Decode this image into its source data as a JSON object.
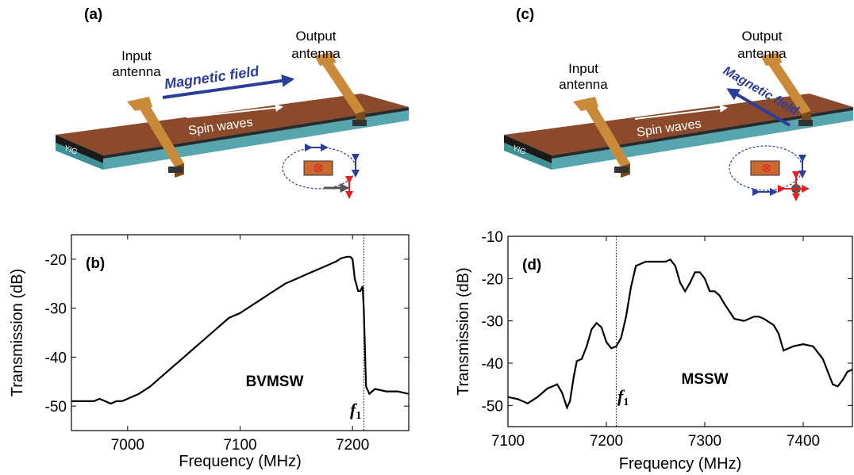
{
  "colors": {
    "slab_top": "#8a4a2a",
    "slab_side": "#3e8f96",
    "antenna": "#c98a3a",
    "field_arrow": "#2c3e9a",
    "curve": "#000000"
  },
  "panel_a": {
    "letter": "(a)",
    "input_antenna": [
      "Input",
      "antenna"
    ],
    "output_antenna": [
      "Output",
      "antenna"
    ],
    "field_label": "Magnetic field",
    "wave_label": "Spin waves",
    "yig": "YIG",
    "ggg": "GGG"
  },
  "panel_c": {
    "letter": "(c)",
    "input_antenna": [
      "Input",
      "antenna"
    ],
    "output_antenna": [
      "Output",
      "antenna"
    ],
    "field_label": "Magnetic field",
    "wave_label": "Spin waves",
    "yig": "YIG",
    "ggg": "GGG"
  },
  "chart_data": [
    {
      "type": "line",
      "panel": "(b)",
      "annotation": "BVMSW",
      "marker_label": "f",
      "marker_sub": "1",
      "marker_x": 7210,
      "xlabel": "Frequency (MHz)",
      "ylabel": "Transmission (dB)",
      "xlim": [
        6950,
        7250
      ],
      "ylim": [
        -55,
        -15
      ],
      "xticks": [
        7000,
        7100,
        7200
      ],
      "yticks": [
        -50,
        -40,
        -30,
        -20
      ],
      "series": [
        {
          "x": [
            6950,
            6970,
            6975,
            6985,
            6990,
            6995,
            7000,
            7010,
            7020,
            7030,
            7040,
            7050,
            7060,
            7070,
            7080,
            7090,
            7100,
            7110,
            7120,
            7130,
            7140,
            7150,
            7160,
            7170,
            7180,
            7185,
            7190,
            7195,
            7198,
            7200,
            7202,
            7205,
            7207,
            7208,
            7209,
            7210,
            7212,
            7215,
            7220,
            7230,
            7240,
            7250
          ],
          "y": [
            -49,
            -49,
            -48.5,
            -49.5,
            -49,
            -49,
            -48.5,
            -47.5,
            -46,
            -44,
            -42,
            -40,
            -38,
            -36,
            -34,
            -32,
            -31,
            -29.5,
            -28,
            -26.5,
            -25,
            -24,
            -23,
            -22,
            -21,
            -20.5,
            -19.8,
            -19.5,
            -19.5,
            -20,
            -24,
            -26.5,
            -26.5,
            -26,
            -25.5,
            -30,
            -46,
            -47.5,
            -46.5,
            -47,
            -47,
            -47.5
          ]
        }
      ]
    },
    {
      "type": "line",
      "panel": "(d)",
      "annotation": "MSSW",
      "marker_label": "f",
      "marker_sub": "1",
      "marker_x": 7210,
      "xlabel": "Frequency (MHz)",
      "ylabel": "Transmission (dB)",
      "xlim": [
        7100,
        7450
      ],
      "ylim": [
        -55,
        -10
      ],
      "xticks": [
        7100,
        7200,
        7300,
        7400
      ],
      "yticks": [
        -50,
        -40,
        -30,
        -20,
        -10
      ],
      "series": [
        {
          "x": [
            7100,
            7110,
            7120,
            7130,
            7140,
            7150,
            7155,
            7160,
            7163,
            7167,
            7170,
            7175,
            7180,
            7185,
            7190,
            7195,
            7200,
            7205,
            7210,
            7215,
            7220,
            7225,
            7230,
            7240,
            7250,
            7260,
            7265,
            7270,
            7275,
            7280,
            7285,
            7290,
            7295,
            7300,
            7305,
            7310,
            7315,
            7320,
            7330,
            7340,
            7350,
            7355,
            7360,
            7370,
            7375,
            7380,
            7390,
            7400,
            7410,
            7420,
            7430,
            7435,
            7440,
            7445,
            7450
          ],
          "y": [
            -48,
            -48.5,
            -49.5,
            -48,
            -46,
            -45,
            -47,
            -50.5,
            -49,
            -43,
            -39.5,
            -39,
            -36,
            -32,
            -30.5,
            -31.5,
            -35,
            -36.5,
            -36,
            -34,
            -29,
            -22,
            -17,
            -16,
            -16,
            -16,
            -15.5,
            -17,
            -21,
            -23,
            -21,
            -18.5,
            -18.5,
            -20,
            -23,
            -23,
            -24,
            -26,
            -29.5,
            -30,
            -29,
            -29,
            -29.5,
            -31,
            -33,
            -37,
            -36,
            -35.5,
            -36,
            -39,
            -45,
            -45.5,
            -44,
            -42,
            -41.5
          ]
        }
      ]
    }
  ]
}
